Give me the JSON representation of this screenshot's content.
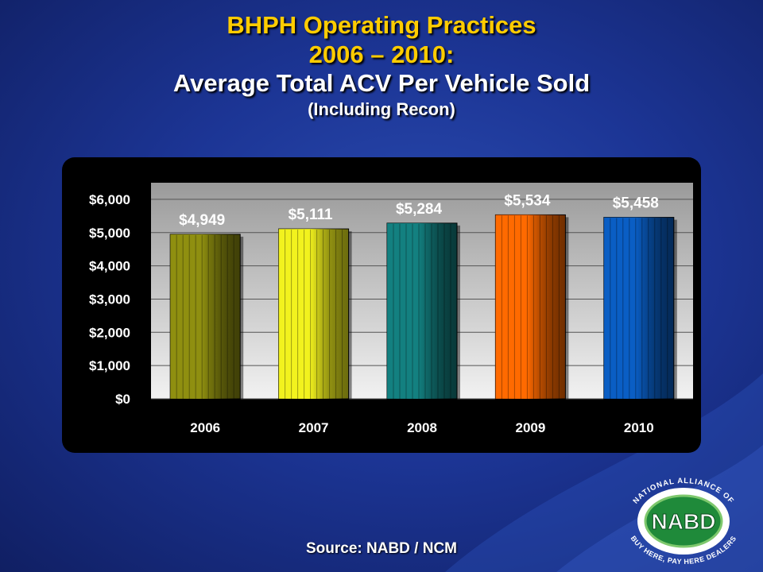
{
  "title": {
    "line1": "BHPH Operating Practices",
    "line2": "2006 – 2010:",
    "line3": "Average Total ACV Per Vehicle Sold",
    "line4": "(Including Recon)"
  },
  "source": "Source: NABD / NCM",
  "logo": {
    "acronym": "NABD",
    "ring_top": "NATIONAL ALLIANCE OF",
    "ring_bottom": "BUY HERE, PAY HERE DEALERS"
  },
  "colors": {
    "bar_2006": "#8f8f10",
    "bar_2007": "#f2f21e",
    "bar_2008": "#138080",
    "bar_2009": "#ff6a00",
    "bar_2010": "#0a5ec4",
    "title_accent": "#ffcc00"
  },
  "chart_data": {
    "type": "bar",
    "title": "",
    "xlabel": "",
    "ylabel": "",
    "categories": [
      "2006",
      "2007",
      "2008",
      "2009",
      "2010"
    ],
    "values": [
      4949,
      5111,
      5284,
      5534,
      5458
    ],
    "data_labels": [
      "$4,949",
      "$5,111",
      "$5,284",
      "$5,534",
      "$5,458"
    ],
    "ylim": [
      0,
      6500
    ],
    "yticks": [
      0,
      1000,
      2000,
      3000,
      4000,
      5000,
      6000
    ],
    "ytick_labels": [
      "$0",
      "$1,000",
      "$2,000",
      "$3,000",
      "$4,000",
      "$5,000",
      "$6,000"
    ],
    "grid": true,
    "legend": "none",
    "bar_colors": [
      "#8f8f10",
      "#f2f21e",
      "#138080",
      "#ff6a00",
      "#0a5ec4"
    ]
  }
}
